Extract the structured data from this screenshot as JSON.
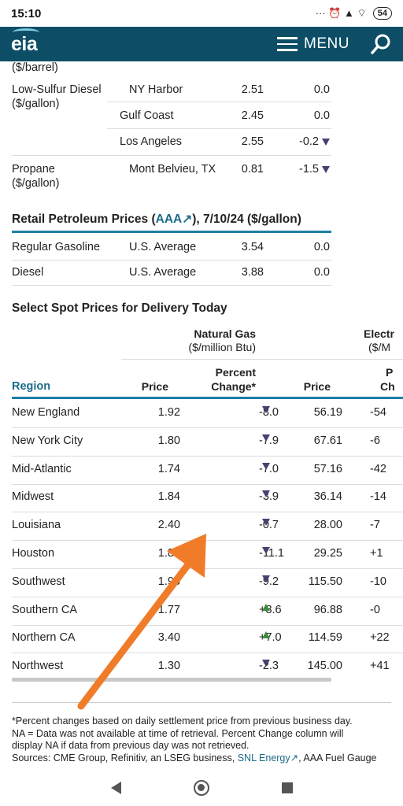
{
  "status_bar": {
    "time": "15:10",
    "icons": "··· ⏰ ▲ ⌔",
    "battery": "54"
  },
  "header": {
    "logo": "eia",
    "menu_label": "MENU"
  },
  "wholesale": {
    "cut_label": "($/barrel)",
    "rows": [
      {
        "product": "Low-Sulfur Diesel",
        "unit": "($/gallon)",
        "location": "NY Harbor",
        "price": "2.51",
        "change": "0.0",
        "trend": ""
      },
      {
        "product": "",
        "unit": "",
        "location": "Gulf Coast",
        "price": "2.45",
        "change": "0.0",
        "trend": ""
      },
      {
        "product": "",
        "unit": "",
        "location": "Los Angeles",
        "price": "2.55",
        "change": "-0.2",
        "trend": "down"
      },
      {
        "product": "Propane",
        "unit": "($/gallon)",
        "location": "Mont Belvieu, TX",
        "price": "0.81",
        "change": "-1.5",
        "trend": "down"
      }
    ]
  },
  "retail": {
    "title_prefix": "Retail Petroleum Prices (",
    "title_link": "AAA",
    "title_suffix": "), 7/10/24 ($/gallon)",
    "rows": [
      {
        "product": "Regular Gasoline",
        "location": "U.S. Average",
        "price": "3.54",
        "change": "0.0"
      },
      {
        "product": "Diesel",
        "location": "U.S. Average",
        "price": "3.88",
        "change": "0.0"
      }
    ]
  },
  "spot": {
    "title": "Select Spot Prices for Delivery Today",
    "group_natural_gas": "Natural Gas",
    "unit_natural_gas": "($/million Btu)",
    "group_electricity": "Electr",
    "unit_electricity": "($/M",
    "col_region": "Region",
    "col_price": "Price",
    "col_pct_line1": "Percent",
    "col_pct_line2": "Change*",
    "col_eprice": "Price",
    "col_epct_line1": "P",
    "col_epct_line2": "Ch",
    "rows": [
      {
        "region": "New England",
        "price": "1.92",
        "pct": "-8.0",
        "trend": "down",
        "eprice": "56.19",
        "epct": "-54"
      },
      {
        "region": "New York City",
        "price": "1.80",
        "pct": "-7.9",
        "trend": "down",
        "eprice": "67.61",
        "epct": "-6"
      },
      {
        "region": "Mid-Atlantic",
        "price": "1.74",
        "pct": "-7.0",
        "trend": "down",
        "eprice": "57.16",
        "epct": "-42"
      },
      {
        "region": "Midwest",
        "price": "1.84",
        "pct": "-3.9",
        "trend": "down",
        "eprice": "36.14",
        "epct": "-14"
      },
      {
        "region": "Louisiana",
        "price": "2.40",
        "pct": "-0.7",
        "trend": "down",
        "eprice": "28.00",
        "epct": "-7"
      },
      {
        "region": "Houston",
        "price": "1.80",
        "pct": "-11.1",
        "trend": "down",
        "eprice": "29.25",
        "epct": "+1"
      },
      {
        "region": "Southwest",
        "price": "1.95",
        "pct": "-9.2",
        "trend": "down",
        "eprice": "115.50",
        "epct": "-10"
      },
      {
        "region": "Southern CA",
        "price": "1.77",
        "pct": "+8.6",
        "trend": "up",
        "eprice": "96.88",
        "epct": "-0"
      },
      {
        "region": "Northern CA",
        "price": "3.40",
        "pct": "+7.0",
        "trend": "up",
        "eprice": "114.59",
        "epct": "+22"
      },
      {
        "region": "Northwest",
        "price": "1.30",
        "pct": "-2.3",
        "trend": "down",
        "eprice": "145.00",
        "epct": "+41"
      }
    ]
  },
  "footnote": {
    "line1": "*Percent changes based on daily settlement price from previous business day.",
    "line2": "NA = Data was not available at time of retrieval. Percent Change column will",
    "line3": "display NA if data from previous day was not retrieved.",
    "line4_prefix": "Sources: CME Group, Refinitiv, an LSEG business, ",
    "line4_link": "SNL Energy",
    "line4_suffix": ", AAA Fuel Gauge"
  },
  "colors": {
    "header_bg": "#0d4e66",
    "accent": "#1b7fa6",
    "link": "#1b6b8a",
    "down": "#4b3f72",
    "up": "#3e8e3e",
    "annotation_arrow": "#f07c2a"
  }
}
